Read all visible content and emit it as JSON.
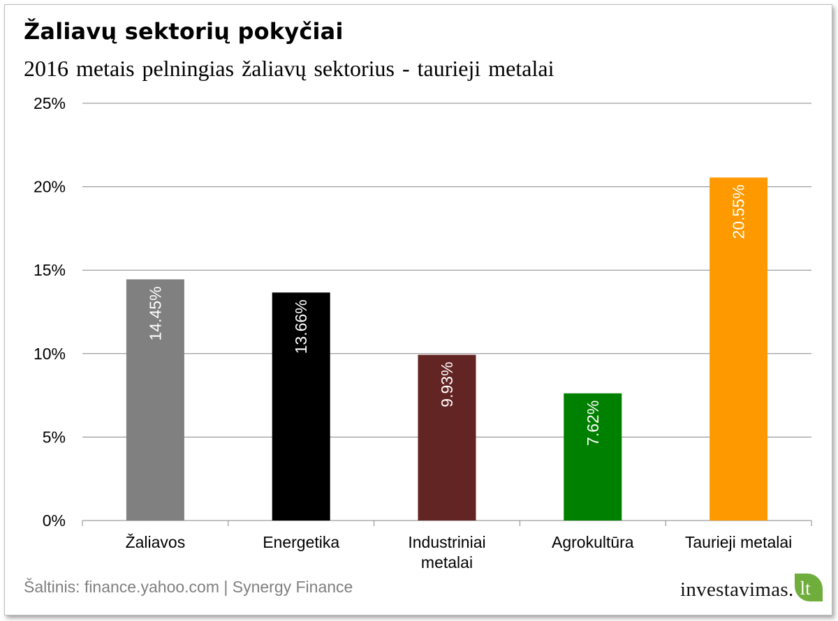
{
  "title": "Žaliavų sektorių pokyčiai",
  "subtitle": "2016 metais pelningias žaliavų sektorius - taurieji metalai",
  "source": "Šaltinis: finance.yahoo.com | Synergy Finance",
  "logo": {
    "main": "investavimas.",
    "tld": "lt"
  },
  "chart_data": {
    "type": "bar",
    "categories": [
      [
        "Žaliavos"
      ],
      [
        "Energetika"
      ],
      [
        "Industriniai",
        "metalai"
      ],
      [
        "Agrokultūra"
      ],
      [
        "Taurieji metalai"
      ]
    ],
    "values": [
      14.45,
      13.66,
      9.93,
      7.62,
      20.55
    ],
    "data_labels": [
      "14.45%",
      "13.66%",
      "9.93%",
      "7.62%",
      "20.55%"
    ],
    "colors": [
      "#808080",
      "#000000",
      "#632523",
      "#008000",
      "#ff9900"
    ],
    "yticks": [
      "0%",
      "5%",
      "10%",
      "15%",
      "20%",
      "25%"
    ],
    "ylim": [
      0,
      25
    ],
    "grid": true,
    "legend": "none"
  }
}
